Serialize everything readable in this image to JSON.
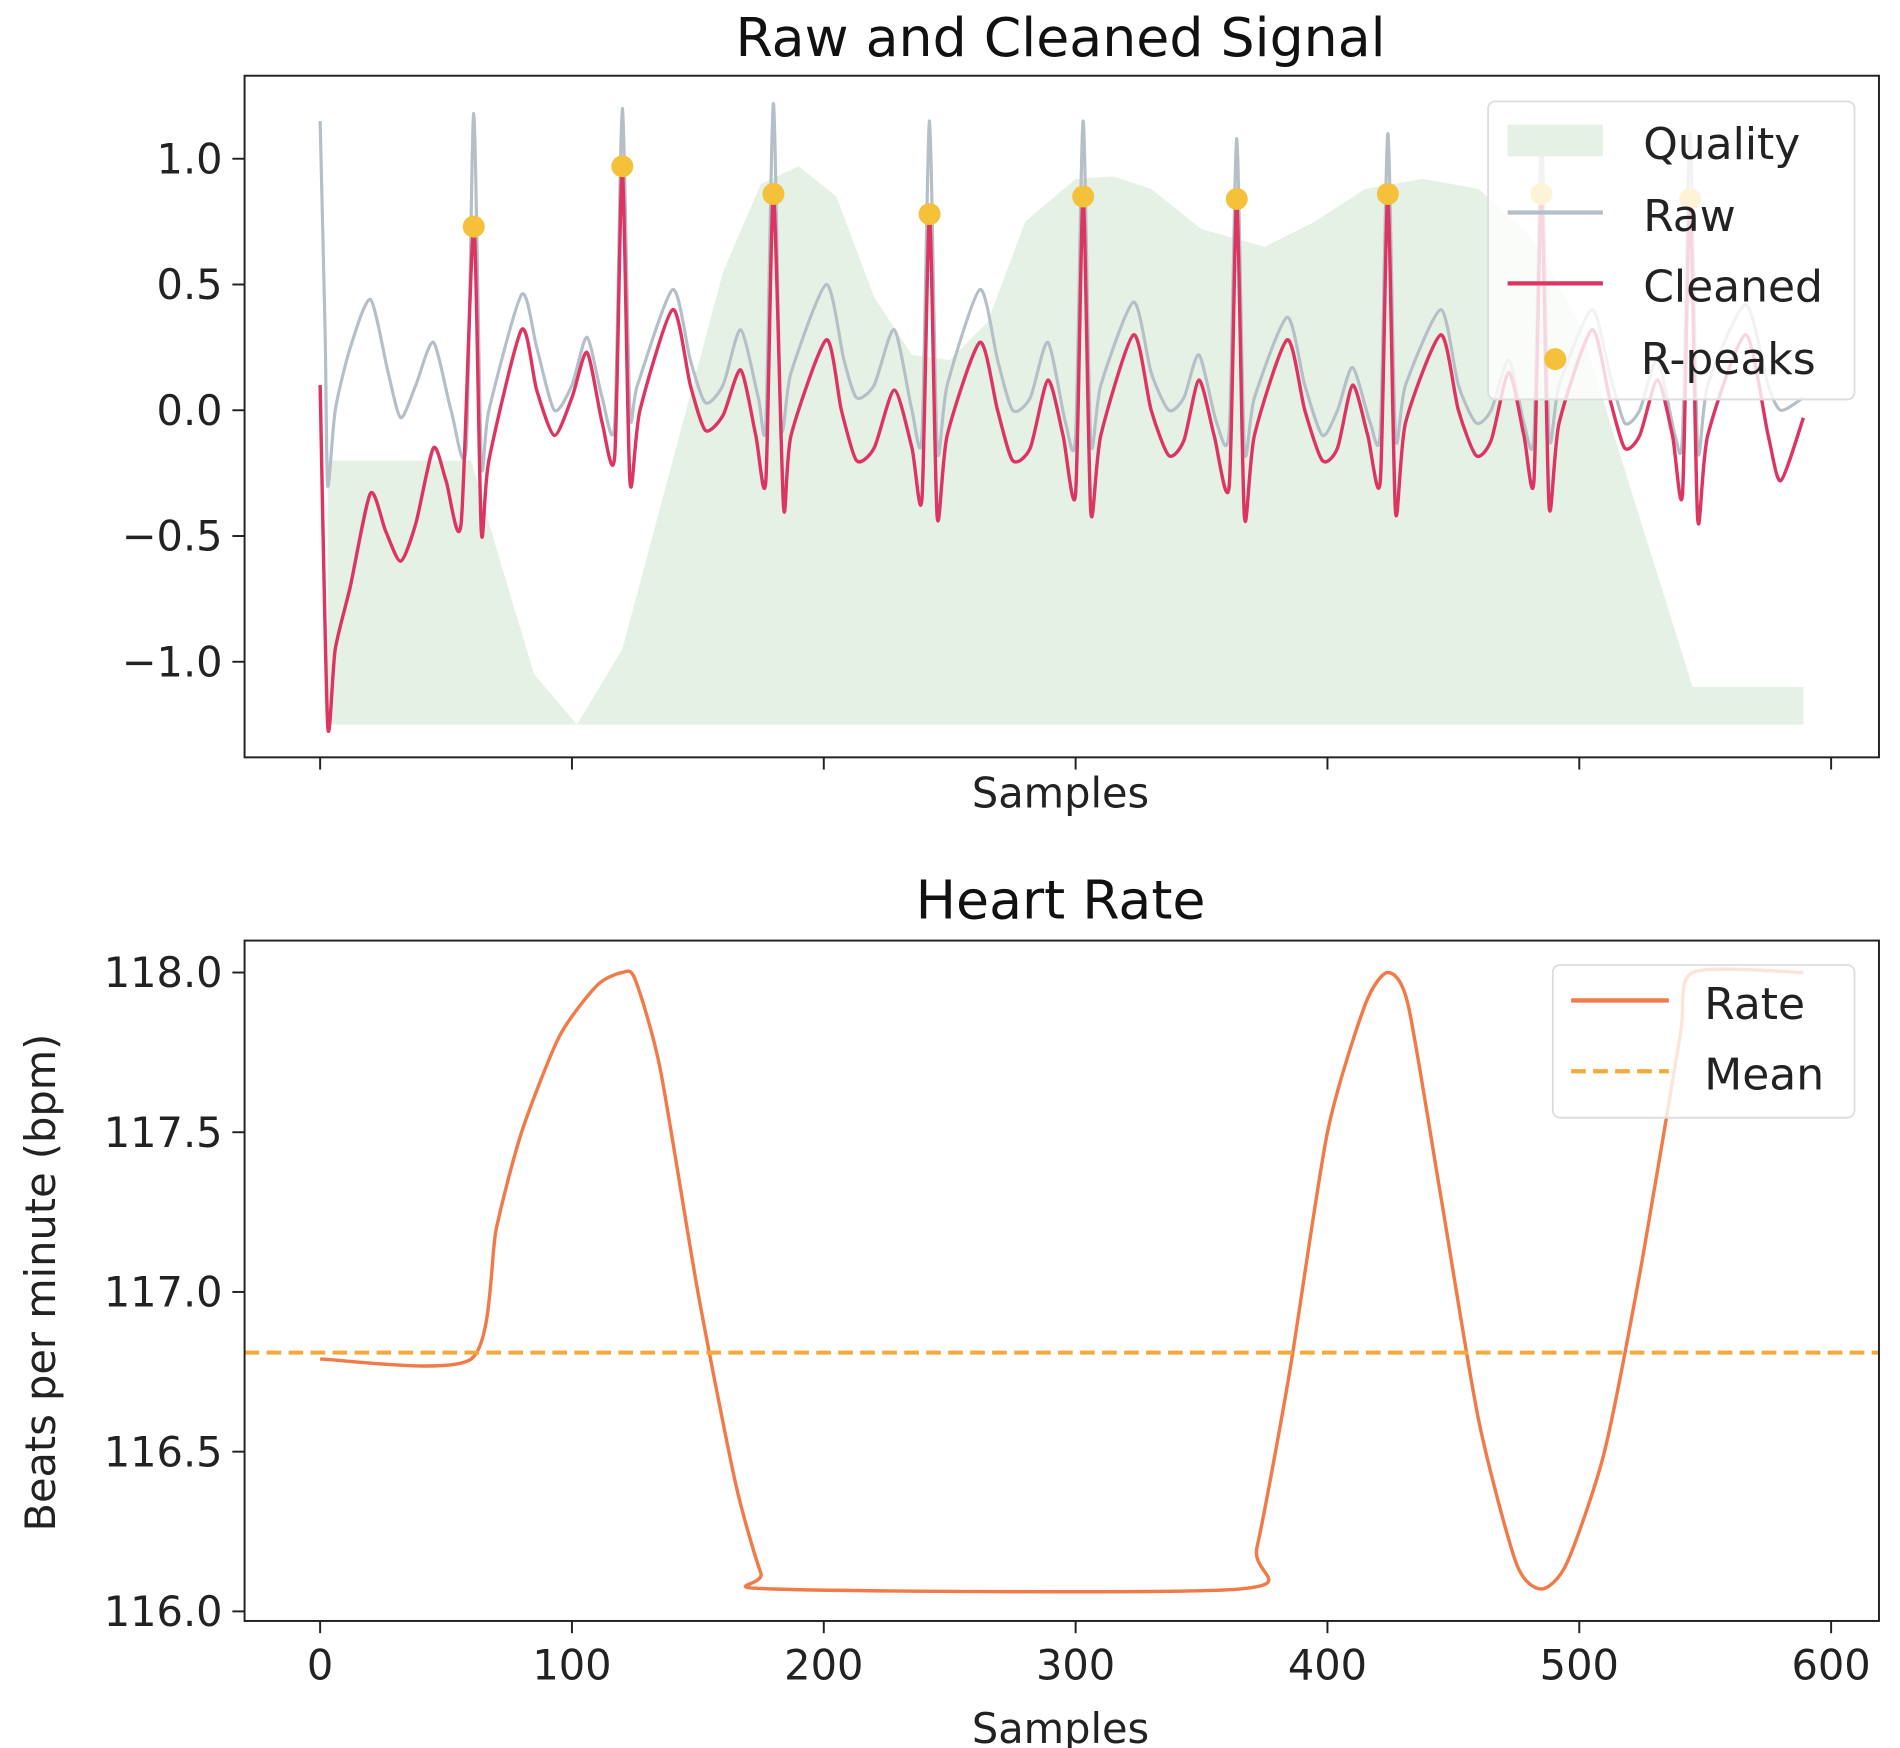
{
  "chart_data": [
    {
      "type": "line",
      "title": "Raw and Cleaned Signal",
      "xlabel": "Samples",
      "ylabel": "",
      "xlim": [
        -30,
        619
      ],
      "ylim": [
        -1.38,
        1.33
      ],
      "xticks": [
        0,
        100,
        200,
        300,
        400,
        500,
        600
      ],
      "xtick_labels_shown": false,
      "yticks": [
        1.0,
        0.5,
        0.0,
        -0.5,
        -1.0
      ],
      "ytick_labels": [
        "1.0",
        "0.5",
        "0.0",
        "−0.5",
        "−1.0"
      ],
      "grid": false,
      "legend_position": "top-right",
      "legend": [
        "Quality",
        "Raw",
        "Cleaned",
        "R-peaks"
      ],
      "quality": {
        "name": "Quality",
        "color": "#e6f1e6",
        "baseline": -1.25,
        "points": [
          [
            3,
            -0.2
          ],
          [
            60,
            -0.2
          ],
          [
            70,
            -0.55
          ],
          [
            85,
            -1.05
          ],
          [
            102,
            -1.25
          ],
          [
            120,
            -0.95
          ],
          [
            140,
            -0.2
          ],
          [
            160,
            0.55
          ],
          [
            175,
            0.9
          ],
          [
            190,
            0.97
          ],
          [
            205,
            0.85
          ],
          [
            220,
            0.45
          ],
          [
            235,
            0.22
          ],
          [
            250,
            0.2
          ],
          [
            265,
            0.35
          ],
          [
            280,
            0.75
          ],
          [
            300,
            0.92
          ],
          [
            315,
            0.93
          ],
          [
            330,
            0.88
          ],
          [
            350,
            0.72
          ],
          [
            375,
            0.65
          ],
          [
            395,
            0.75
          ],
          [
            415,
            0.88
          ],
          [
            438,
            0.92
          ],
          [
            460,
            0.88
          ],
          [
            480,
            0.7
          ],
          [
            500,
            0.35
          ],
          [
            520,
            -0.3
          ],
          [
            545,
            -1.1
          ],
          [
            589,
            -1.1
          ]
        ]
      },
      "raw": {
        "name": "Raw",
        "color": "#b4bfc8",
        "points": [
          [
            0,
            1.15
          ],
          [
            2,
            0.3
          ],
          [
            3,
            -0.3
          ],
          [
            6,
            0.0
          ],
          [
            12,
            0.25
          ],
          [
            20,
            0.44
          ],
          [
            27,
            0.15
          ],
          [
            32,
            -0.03
          ],
          [
            38,
            0.1
          ],
          [
            45,
            0.27
          ],
          [
            52,
            0.0
          ],
          [
            58,
            -0.15
          ],
          [
            61,
            1.18
          ],
          [
            64,
            -0.2
          ],
          [
            67,
            0.0
          ],
          [
            80,
            0.46
          ],
          [
            86,
            0.25
          ],
          [
            93,
            0.0
          ],
          [
            100,
            0.1
          ],
          [
            106,
            0.29
          ],
          [
            112,
            0.05
          ],
          [
            117,
            -0.05
          ],
          [
            120,
            1.2
          ],
          [
            123,
            0.0
          ],
          [
            126,
            0.1
          ],
          [
            140,
            0.48
          ],
          [
            147,
            0.2
          ],
          [
            153,
            0.03
          ],
          [
            160,
            0.1
          ],
          [
            167,
            0.32
          ],
          [
            174,
            0.05
          ],
          [
            177,
            -0.05
          ],
          [
            180,
            1.22
          ],
          [
            183,
            -0.05
          ],
          [
            187,
            0.15
          ],
          [
            201,
            0.5
          ],
          [
            208,
            0.2
          ],
          [
            213,
            0.05
          ],
          [
            220,
            0.1
          ],
          [
            228,
            0.32
          ],
          [
            235,
            0.0
          ],
          [
            239,
            -0.1
          ],
          [
            242,
            1.15
          ],
          [
            245,
            -0.15
          ],
          [
            249,
            0.1
          ],
          [
            262,
            0.48
          ],
          [
            269,
            0.2
          ],
          [
            275,
            0.0
          ],
          [
            282,
            0.05
          ],
          [
            289,
            0.27
          ],
          [
            296,
            -0.05
          ],
          [
            300,
            -0.1
          ],
          [
            303,
            1.15
          ],
          [
            306,
            -0.12
          ],
          [
            310,
            0.1
          ],
          [
            323,
            0.43
          ],
          [
            330,
            0.15
          ],
          [
            337,
            0.0
          ],
          [
            343,
            0.05
          ],
          [
            349,
            0.22
          ],
          [
            356,
            -0.05
          ],
          [
            361,
            -0.08
          ],
          [
            364,
            1.08
          ],
          [
            367,
            -0.15
          ],
          [
            371,
            0.05
          ],
          [
            384,
            0.37
          ],
          [
            391,
            0.1
          ],
          [
            398,
            -0.1
          ],
          [
            404,
            0.0
          ],
          [
            410,
            0.17
          ],
          [
            417,
            -0.05
          ],
          [
            421,
            -0.08
          ],
          [
            424,
            1.1
          ],
          [
            427,
            -0.1
          ],
          [
            431,
            0.1
          ],
          [
            445,
            0.4
          ],
          [
            452,
            0.1
          ],
          [
            459,
            -0.05
          ],
          [
            465,
            0.0
          ],
          [
            472,
            0.2
          ],
          [
            478,
            -0.05
          ],
          [
            482,
            -0.1
          ],
          [
            485,
            1.08
          ],
          [
            488,
            -0.1
          ],
          [
            492,
            0.1
          ],
          [
            505,
            0.4
          ],
          [
            512,
            0.15
          ],
          [
            518,
            -0.05
          ],
          [
            524,
            0.0
          ],
          [
            531,
            0.2
          ],
          [
            538,
            -0.1
          ],
          [
            541,
            -0.1
          ],
          [
            544,
            1.1
          ],
          [
            547,
            -0.15
          ],
          [
            551,
            0.1
          ],
          [
            566,
            0.42
          ],
          [
            575,
            0.1
          ],
          [
            580,
            0.0
          ],
          [
            589,
            0.05
          ]
        ]
      },
      "cleaned": {
        "name": "Cleaned",
        "color": "#dc3562",
        "points": [
          [
            0,
            0.1
          ],
          [
            3,
            -1.25
          ],
          [
            6,
            -0.95
          ],
          [
            12,
            -0.7
          ],
          [
            20,
            -0.33
          ],
          [
            26,
            -0.48
          ],
          [
            32,
            -0.6
          ],
          [
            38,
            -0.45
          ],
          [
            45,
            -0.15
          ],
          [
            50,
            -0.28
          ],
          [
            56,
            -0.45
          ],
          [
            61,
            0.73
          ],
          [
            64,
            -0.48
          ],
          [
            67,
            -0.2
          ],
          [
            80,
            0.32
          ],
          [
            86,
            0.08
          ],
          [
            93,
            -0.1
          ],
          [
            100,
            0.05
          ],
          [
            106,
            0.23
          ],
          [
            112,
            -0.05
          ],
          [
            117,
            -0.18
          ],
          [
            120,
            0.97
          ],
          [
            123,
            -0.28
          ],
          [
            127,
            0.0
          ],
          [
            140,
            0.4
          ],
          [
            147,
            0.1
          ],
          [
            153,
            -0.08
          ],
          [
            160,
            -0.02
          ],
          [
            167,
            0.16
          ],
          [
            173,
            -0.1
          ],
          [
            177,
            -0.28
          ],
          [
            180,
            0.86
          ],
          [
            184,
            -0.38
          ],
          [
            187,
            -0.1
          ],
          [
            201,
            0.28
          ],
          [
            207,
            0.0
          ],
          [
            213,
            -0.2
          ],
          [
            220,
            -0.15
          ],
          [
            228,
            0.08
          ],
          [
            235,
            -0.15
          ],
          [
            239,
            -0.35
          ],
          [
            242,
            0.78
          ],
          [
            245,
            -0.42
          ],
          [
            249,
            -0.1
          ],
          [
            262,
            0.27
          ],
          [
            269,
            0.0
          ],
          [
            275,
            -0.2
          ],
          [
            282,
            -0.15
          ],
          [
            289,
            0.12
          ],
          [
            295,
            -0.1
          ],
          [
            300,
            -0.33
          ],
          [
            303,
            0.85
          ],
          [
            306,
            -0.4
          ],
          [
            310,
            -0.1
          ],
          [
            323,
            0.3
          ],
          [
            330,
            0.0
          ],
          [
            337,
            -0.18
          ],
          [
            343,
            -0.12
          ],
          [
            349,
            0.12
          ],
          [
            355,
            -0.1
          ],
          [
            361,
            -0.3
          ],
          [
            364,
            0.84
          ],
          [
            367,
            -0.42
          ],
          [
            371,
            -0.1
          ],
          [
            384,
            0.28
          ],
          [
            391,
            0.0
          ],
          [
            398,
            -0.2
          ],
          [
            404,
            -0.15
          ],
          [
            410,
            0.1
          ],
          [
            416,
            -0.1
          ],
          [
            421,
            -0.28
          ],
          [
            424,
            0.86
          ],
          [
            427,
            -0.4
          ],
          [
            431,
            -0.05
          ],
          [
            445,
            0.3
          ],
          [
            452,
            0.0
          ],
          [
            459,
            -0.18
          ],
          [
            465,
            -0.12
          ],
          [
            472,
            0.15
          ],
          [
            478,
            -0.1
          ],
          [
            482,
            -0.28
          ],
          [
            485,
            0.86
          ],
          [
            488,
            -0.38
          ],
          [
            492,
            -0.05
          ],
          [
            505,
            0.32
          ],
          [
            512,
            0.05
          ],
          [
            518,
            -0.15
          ],
          [
            524,
            -0.1
          ],
          [
            531,
            0.12
          ],
          [
            537,
            -0.1
          ],
          [
            541,
            -0.33
          ],
          [
            544,
            0.84
          ],
          [
            547,
            -0.43
          ],
          [
            551,
            -0.1
          ],
          [
            566,
            0.3
          ],
          [
            575,
            -0.1
          ],
          [
            580,
            -0.28
          ],
          [
            589,
            -0.03
          ]
        ]
      },
      "r_peaks": {
        "name": "R-peaks",
        "color": "#f5c13b",
        "points": [
          [
            61,
            0.73
          ],
          [
            120,
            0.97
          ],
          [
            180,
            0.86
          ],
          [
            242,
            0.78
          ],
          [
            303,
            0.85
          ],
          [
            364,
            0.84
          ],
          [
            424,
            0.86
          ],
          [
            485,
            0.86
          ],
          [
            544,
            0.84
          ]
        ]
      }
    },
    {
      "type": "line",
      "title": "Heart Rate",
      "xlabel": "Samples",
      "ylabel": "Beats per minute (bpm)",
      "xlim": [
        -30,
        619
      ],
      "ylim": [
        115.97,
        118.1
      ],
      "xticks": [
        0,
        100,
        200,
        300,
        400,
        500,
        600
      ],
      "xtick_labels": [
        "0",
        "100",
        "200",
        "300",
        "400",
        "500",
        "600"
      ],
      "yticks": [
        118.0,
        117.5,
        117.0,
        116.5,
        116.0
      ],
      "ytick_labels": [
        "118.0",
        "117.5",
        "117.0",
        "116.5",
        "116.0"
      ],
      "grid": false,
      "legend_position": "top-right",
      "legend": [
        "Rate",
        "Mean"
      ],
      "rate": {
        "name": "Rate",
        "color": "#f07a48",
        "points": [
          [
            0,
            116.79
          ],
          [
            60,
            116.79
          ],
          [
            70,
            117.2
          ],
          [
            80,
            117.5
          ],
          [
            95,
            117.8
          ],
          [
            110,
            117.96
          ],
          [
            120,
            118.0
          ],
          [
            125,
            117.98
          ],
          [
            135,
            117.7
          ],
          [
            150,
            117.0
          ],
          [
            165,
            116.4
          ],
          [
            175,
            116.12
          ],
          [
            180,
            116.07
          ],
          [
            365,
            116.07
          ],
          [
            372,
            116.2
          ],
          [
            385,
            116.75
          ],
          [
            400,
            117.5
          ],
          [
            415,
            117.9
          ],
          [
            424,
            118.0
          ],
          [
            432,
            117.9
          ],
          [
            445,
            117.3
          ],
          [
            460,
            116.6
          ],
          [
            475,
            116.15
          ],
          [
            485,
            116.07
          ],
          [
            495,
            116.15
          ],
          [
            510,
            116.5
          ],
          [
            525,
            117.1
          ],
          [
            540,
            117.8
          ],
          [
            545,
            118.0
          ],
          [
            589,
            118.0
          ]
        ]
      },
      "mean": {
        "name": "Mean",
        "color": "#f5a93b",
        "value": 116.81,
        "style": "dashed"
      }
    }
  ]
}
